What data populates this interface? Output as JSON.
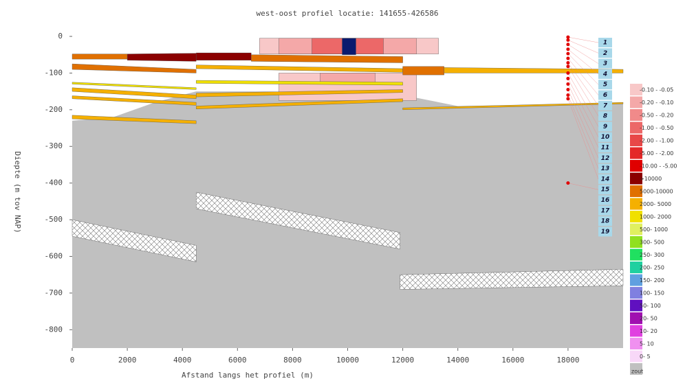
{
  "chart_data": {
    "type": "cross-section",
    "title": "west-oost profiel locatie: 141655-426586",
    "x_label": "Afstand langs het profiel (m)",
    "y_label": "Diepte (m tov NAP)",
    "xlim": [
      0,
      20000
    ],
    "ylim": [
      -850,
      15
    ],
    "xticks": [
      0,
      2000,
      4000,
      6000,
      8000,
      10000,
      12000,
      14000,
      16000,
      18000
    ],
    "yticks": [
      0,
      -100,
      -200,
      -300,
      -400,
      -500,
      -600,
      -700,
      -800
    ],
    "background_color": "#c0c0c0",
    "background_top": {
      "x": [
        0,
        1500,
        3000,
        4500,
        7000,
        10000,
        12000,
        14000,
        18000,
        20000
      ],
      "y": [
        -230,
        -220,
        -180,
        -150,
        -150,
        -155,
        -160,
        -190,
        -185,
        -180
      ]
    },
    "layers": [
      {
        "color": "#f8c8c8",
        "x": [
          6800,
          13300
        ],
        "top": [
          -5,
          -5
        ],
        "bottom": [
          -48,
          -48
        ]
      },
      {
        "color": "#f4a8a8",
        "x": [
          7500,
          12500
        ],
        "top": [
          -5,
          -5
        ],
        "bottom": [
          -48,
          -48
        ]
      },
      {
        "color": "#ec6868",
        "x": [
          8700,
          11300
        ],
        "top": [
          -5,
          -5
        ],
        "bottom": [
          -48,
          -48
        ]
      },
      {
        "color": "#0a1a6e",
        "x": [
          9800,
          10300
        ],
        "top": [
          -5,
          -5
        ],
        "bottom": [
          -50,
          -50
        ]
      },
      {
        "color": "#f8c8c8",
        "x": [
          7500,
          12500
        ],
        "top": [
          -100,
          -100
        ],
        "bottom": [
          -175,
          -175
        ]
      },
      {
        "color": "#f4a8a8",
        "x": [
          9000,
          11000
        ],
        "top": [
          -100,
          -100
        ],
        "bottom": [
          -130,
          -130
        ]
      },
      {
        "color": "#e07000",
        "x": [
          0,
          2000
        ],
        "top": [
          -48,
          -48
        ],
        "bottom": [
          -62,
          -62
        ]
      },
      {
        "color": "#8b0000",
        "x": [
          2000,
          4500
        ],
        "top": [
          -48,
          -46
        ],
        "bottom": [
          -65,
          -68
        ]
      },
      {
        "color": "#8b0000",
        "x": [
          4500,
          6500
        ],
        "top": [
          -45,
          -45
        ],
        "bottom": [
          -65,
          -65
        ]
      },
      {
        "color": "#e07000",
        "x": [
          6500,
          12000
        ],
        "top": [
          -50,
          -55
        ],
        "bottom": [
          -68,
          -72
        ]
      },
      {
        "color": "#e07000",
        "x": [
          0,
          4500
        ],
        "top": [
          -75,
          -90
        ],
        "bottom": [
          -90,
          -100
        ]
      },
      {
        "color": "#f5b000",
        "x": [
          4500,
          12000
        ],
        "top": [
          -78,
          -88
        ],
        "bottom": [
          -88,
          -98
        ]
      },
      {
        "color": "#e07000",
        "x": [
          12000,
          13500
        ],
        "top": [
          -82,
          -82
        ],
        "bottom": [
          -105,
          -105
        ]
      },
      {
        "color": "#f5b000",
        "x": [
          13500,
          20000
        ],
        "top": [
          -85,
          -90
        ],
        "bottom": [
          -100,
          -100
        ]
      },
      {
        "color": "#f0e000",
        "x": [
          0,
          4500
        ],
        "top": [
          -125,
          -140
        ],
        "bottom": [
          -130,
          -145
        ]
      },
      {
        "color": "#f5b000",
        "x": [
          0,
          4500
        ],
        "top": [
          -140,
          -160
        ],
        "bottom": [
          -150,
          -170
        ]
      },
      {
        "color": "#f0e000",
        "x": [
          4500,
          12000
        ],
        "top": [
          -120,
          -125
        ],
        "bottom": [
          -128,
          -133
        ]
      },
      {
        "color": "#f5b000",
        "x": [
          0,
          4500
        ],
        "top": [
          -162,
          -180
        ],
        "bottom": [
          -170,
          -188
        ]
      },
      {
        "color": "#f5b000",
        "x": [
          4500,
          12000
        ],
        "top": [
          -155,
          -145
        ],
        "bottom": [
          -165,
          -153
        ]
      },
      {
        "color": "#f5b000",
        "x": [
          0,
          4500
        ],
        "top": [
          -215,
          -230
        ],
        "bottom": [
          -225,
          -238
        ]
      },
      {
        "color": "#f5b000",
        "x": [
          4500,
          12000
        ],
        "top": [
          -190,
          -170
        ],
        "bottom": [
          -198,
          -178
        ]
      },
      {
        "color": "#f5b000",
        "x": [
          12000,
          20000
        ],
        "top": [
          -195,
          -180
        ],
        "bottom": [
          -200,
          -184
        ]
      }
    ],
    "hatched": [
      {
        "x": [
          0,
          4500
        ],
        "top": [
          -500,
          -570
        ],
        "bottom": [
          -545,
          -615
        ]
      },
      {
        "x": [
          4500,
          11900
        ],
        "top": [
          -425,
          -535
        ],
        "bottom": [
          -470,
          -580
        ]
      },
      {
        "x": [
          11900,
          20000
        ],
        "top": [
          -650,
          -635
        ],
        "bottom": [
          -690,
          -680
        ]
      }
    ],
    "filters": {
      "color": "#e00000",
      "x": 18000,
      "y": [
        -2,
        -10,
        -22,
        -35,
        -47,
        -60,
        -72,
        -82,
        -100,
        -115,
        -130,
        -145,
        -160,
        -170,
        -400
      ]
    },
    "well_labels": [
      "1",
      "2",
      "3",
      "4",
      "5",
      "6",
      "7",
      "8",
      "9",
      "10",
      "11",
      "12",
      "13",
      "14",
      "15",
      "16",
      "17",
      "18",
      "19"
    ],
    "legend": [
      {
        "label": "-0.10 - -0.05",
        "color": "#f8c8c8"
      },
      {
        "label": "-0.20 - -0.10",
        "color": "#f4a8a8"
      },
      {
        "label": "-0.50 - -0.20",
        "color": "#f08a8a"
      },
      {
        "label": "-1.00 - -0.50",
        "color": "#ec6868"
      },
      {
        "label": "-2.00 - -1.00",
        "color": "#e84848"
      },
      {
        "label": "-5.00 - -2.00",
        "color": "#e42828"
      },
      {
        "label": "-10.00 - -5.00",
        "color": "#e00000"
      },
      {
        "label": ">10000",
        "color": "#8b0000"
      },
      {
        "label": "5000-10000",
        "color": "#e07000"
      },
      {
        "label": "2000- 5000",
        "color": "#f5b000"
      },
      {
        "label": "1000- 2000",
        "color": "#f0e000"
      },
      {
        "label": "500- 1000",
        "color": "#e0f060"
      },
      {
        "label": "300- 500",
        "color": "#90e020"
      },
      {
        "label": "250- 300",
        "color": "#20e060"
      },
      {
        "label": "200- 250",
        "color": "#20d0a0"
      },
      {
        "label": "150- 200",
        "color": "#60a0e0"
      },
      {
        "label": "100- 150",
        "color": "#8080e0"
      },
      {
        "label": "50- 100",
        "color": "#6010c0"
      },
      {
        "label": "20- 50",
        "color": "#a010b0"
      },
      {
        "label": "10- 20",
        "color": "#e040e0"
      },
      {
        "label": "5- 10",
        "color": "#f090f0"
      },
      {
        "label": "0- 5",
        "color": "#f8d8f8"
      },
      {
        "label": "zout",
        "color": "#c0c0c0"
      }
    ]
  }
}
